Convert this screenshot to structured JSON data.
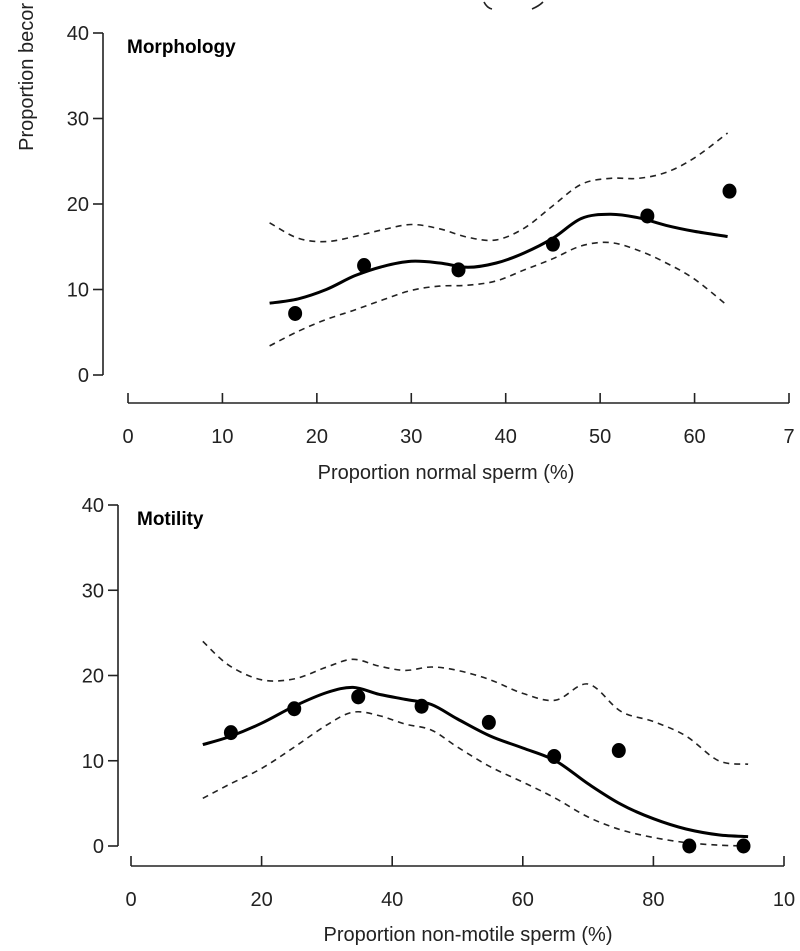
{
  "chart_data": [
    {
      "type": "scatter",
      "title": "Morphology",
      "xlabel": "Proportion normal sperm (%)",
      "ylabel": "Proportion becor",
      "xlim": [
        0,
        70
      ],
      "ylim": [
        0,
        40
      ],
      "x_ticks": [
        "0",
        "10",
        "20",
        "30",
        "40",
        "50",
        "60",
        "7"
      ],
      "y_ticks": [
        "0",
        "10",
        "20",
        "30",
        "40"
      ],
      "grid": false,
      "points": {
        "x": [
          17.7,
          25.0,
          35.0,
          45.0,
          55.0,
          63.7
        ],
        "y": [
          7.2,
          12.8,
          12.3,
          15.3,
          18.6,
          21.5
        ]
      },
      "series": [
        {
          "role": "fit",
          "x": [
            15,
            18,
            21,
            24,
            27,
            30,
            33,
            36,
            39,
            42,
            45,
            48,
            51,
            54,
            57,
            60,
            63.5
          ],
          "y": [
            8.4,
            8.9,
            10.0,
            11.6,
            12.7,
            13.3,
            13.1,
            12.6,
            13.1,
            14.3,
            16.0,
            18.3,
            18.8,
            18.4,
            17.5,
            16.8,
            16.2
          ]
        },
        {
          "role": "upper-ci",
          "x": [
            15,
            18,
            21,
            24,
            27,
            30,
            33,
            36,
            39,
            42,
            45,
            48,
            51,
            54,
            57,
            60,
            63.5
          ],
          "y": [
            17.8,
            16.0,
            15.6,
            16.2,
            17.0,
            17.6,
            17.1,
            16.1,
            15.8,
            17.2,
            19.8,
            22.3,
            23.0,
            23.0,
            23.7,
            25.4,
            28.3
          ]
        },
        {
          "role": "lower-ci",
          "x": [
            15,
            18,
            21,
            24,
            27,
            30,
            33,
            36,
            39,
            42,
            45,
            48,
            51,
            54,
            57,
            60,
            63.5
          ],
          "y": [
            3.4,
            5.1,
            6.5,
            7.6,
            8.8,
            9.9,
            10.4,
            10.5,
            11.0,
            12.3,
            13.6,
            15.1,
            15.5,
            14.6,
            13.1,
            11.2,
            8.1
          ]
        }
      ]
    },
    {
      "type": "scatter",
      "title": "Motility",
      "xlabel": "Proportion non-motile sperm (%)",
      "ylabel": "",
      "xlim": [
        0,
        100
      ],
      "ylim": [
        0,
        40
      ],
      "x_ticks": [
        "0",
        "20",
        "40",
        "60",
        "80",
        "10"
      ],
      "y_ticks": [
        "0",
        "10",
        "20",
        "30",
        "40"
      ],
      "grid": false,
      "points": {
        "x": [
          15.3,
          25.0,
          34.8,
          44.5,
          54.8,
          64.8,
          74.7,
          85.5,
          93.8
        ],
        "y": [
          13.3,
          16.1,
          17.5,
          16.4,
          14.5,
          10.5,
          11.2,
          0.0,
          0.0
        ]
      },
      "series": [
        {
          "role": "fit",
          "x": [
            11,
            15,
            20,
            25,
            30,
            34,
            38,
            42,
            46,
            50,
            55,
            60,
            65,
            70,
            75,
            80,
            85,
            90,
            94.5
          ],
          "y": [
            11.9,
            12.8,
            14.4,
            16.4,
            18.0,
            18.6,
            17.8,
            17.2,
            16.6,
            14.9,
            12.9,
            11.5,
            10.0,
            7.3,
            4.9,
            3.2,
            2.0,
            1.3,
            1.1
          ]
        },
        {
          "role": "upper-ci",
          "x": [
            11,
            15,
            20,
            25,
            30,
            34,
            38,
            42,
            46,
            50,
            55,
            60,
            65,
            70,
            75,
            80,
            85,
            90,
            94.5
          ],
          "y": [
            24.0,
            21.2,
            19.5,
            19.6,
            21.0,
            21.9,
            21.1,
            20.6,
            21.0,
            20.6,
            19.5,
            17.9,
            17.1,
            19.0,
            15.8,
            14.6,
            12.9,
            10.0,
            9.6
          ]
        },
        {
          "role": "lower-ci",
          "x": [
            11,
            15,
            20,
            25,
            30,
            34,
            38,
            42,
            46,
            50,
            55,
            60,
            65,
            70,
            75,
            80,
            85,
            90,
            94.5
          ],
          "y": [
            5.6,
            7.2,
            9.1,
            11.6,
            14.2,
            15.7,
            15.3,
            14.3,
            13.6,
            11.6,
            9.3,
            7.5,
            5.6,
            3.4,
            1.9,
            1.0,
            0.4,
            0.1,
            0.0
          ]
        }
      ]
    }
  ]
}
